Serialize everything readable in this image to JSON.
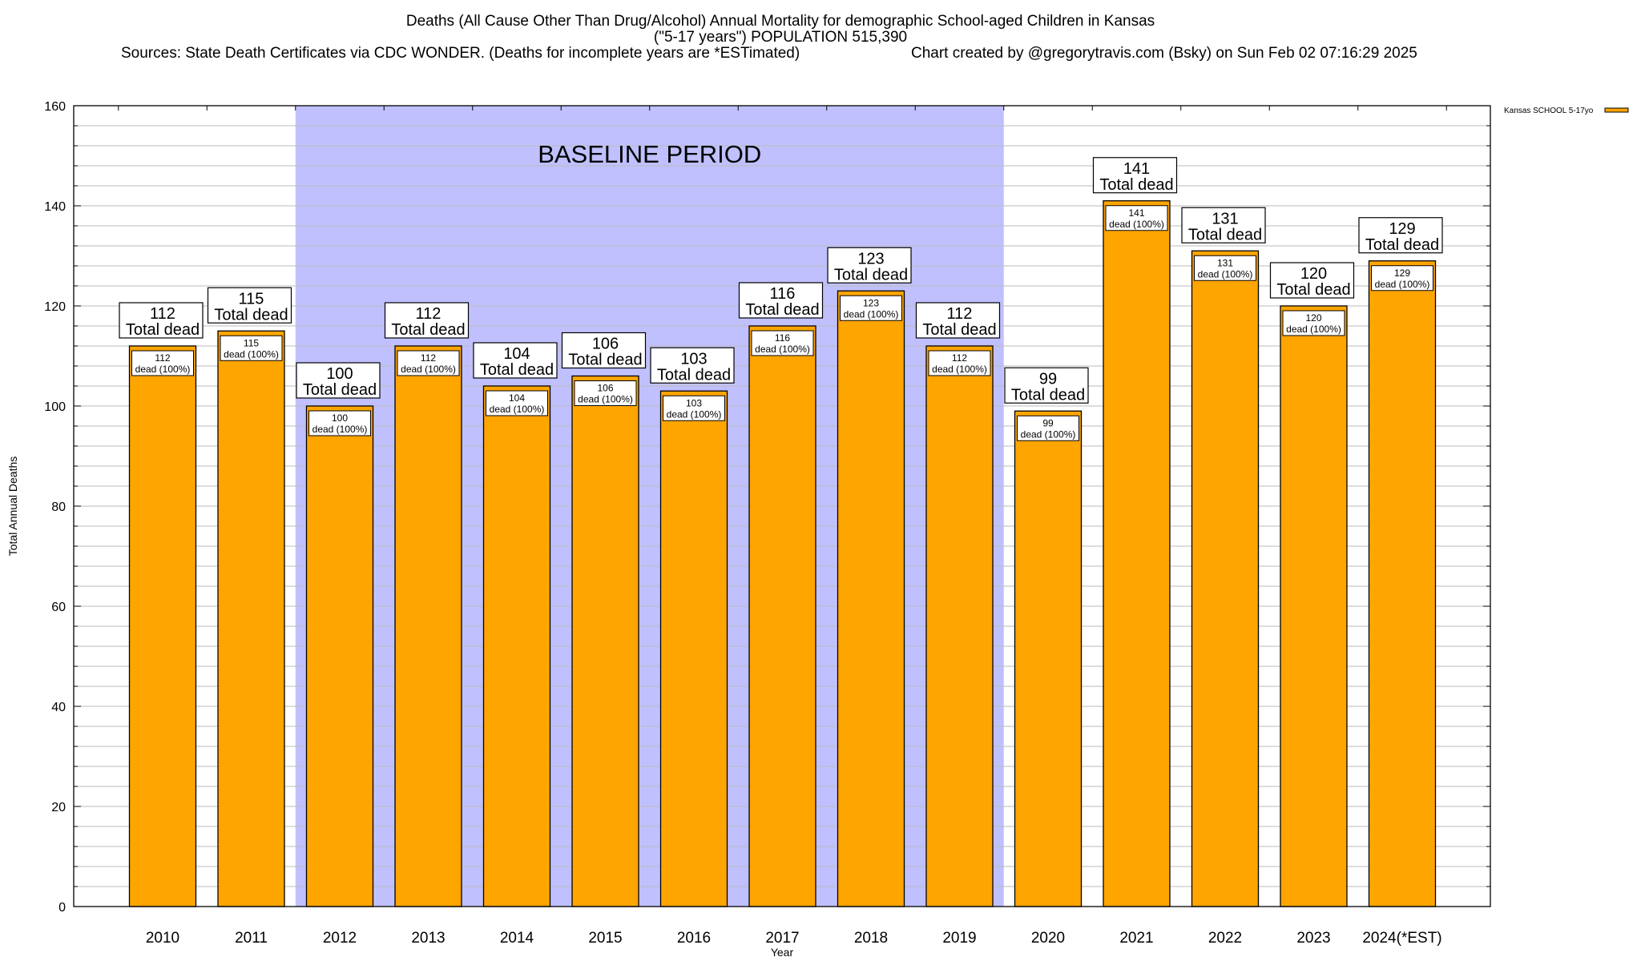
{
  "chart_data": {
    "type": "bar",
    "title_lines": [
      "Deaths (All Cause Other Than Drug/Alcohol) Annual Mortality for demographic School-aged Children in Kansas",
      "(\"5-17 years\") POPULATION 515,390"
    ],
    "sources": "Sources: State Death Certificates via CDC WONDER. (Deaths for incomplete years are *ESTimated)",
    "credit": "Chart created by @gregorytravis.com (Bsky) on Sun Feb 02 07:16:29 2025",
    "xlabel": "Year",
    "ylabel": "Total Annual Deaths",
    "ylim": [
      0,
      160
    ],
    "yticks": [
      0,
      20,
      40,
      60,
      80,
      100,
      120,
      140,
      160
    ],
    "minor_tick_step": 4,
    "grid": true,
    "categories": [
      "2010",
      "2011",
      "2012",
      "2013",
      "2014",
      "2015",
      "2016",
      "2017",
      "2018",
      "2019",
      "2020",
      "2021",
      "2022",
      "2023",
      "2024(*EST)"
    ],
    "series": [
      {
        "name": "Kansas SCHOOL 5-17yo",
        "color": "#FFA500",
        "values": [
          112,
          115,
          100,
          112,
          104,
          106,
          103,
          116,
          123,
          112,
          99,
          141,
          131,
          120,
          129
        ]
      }
    ],
    "top_label_suffix": "Total dead",
    "inner_label_suffix": "dead (100%)",
    "baseline_period": {
      "label": "BASELINE PERIOD",
      "from": "2012",
      "to": "2019",
      "color": "#C0C0FF"
    },
    "legend_position": "top-right"
  }
}
